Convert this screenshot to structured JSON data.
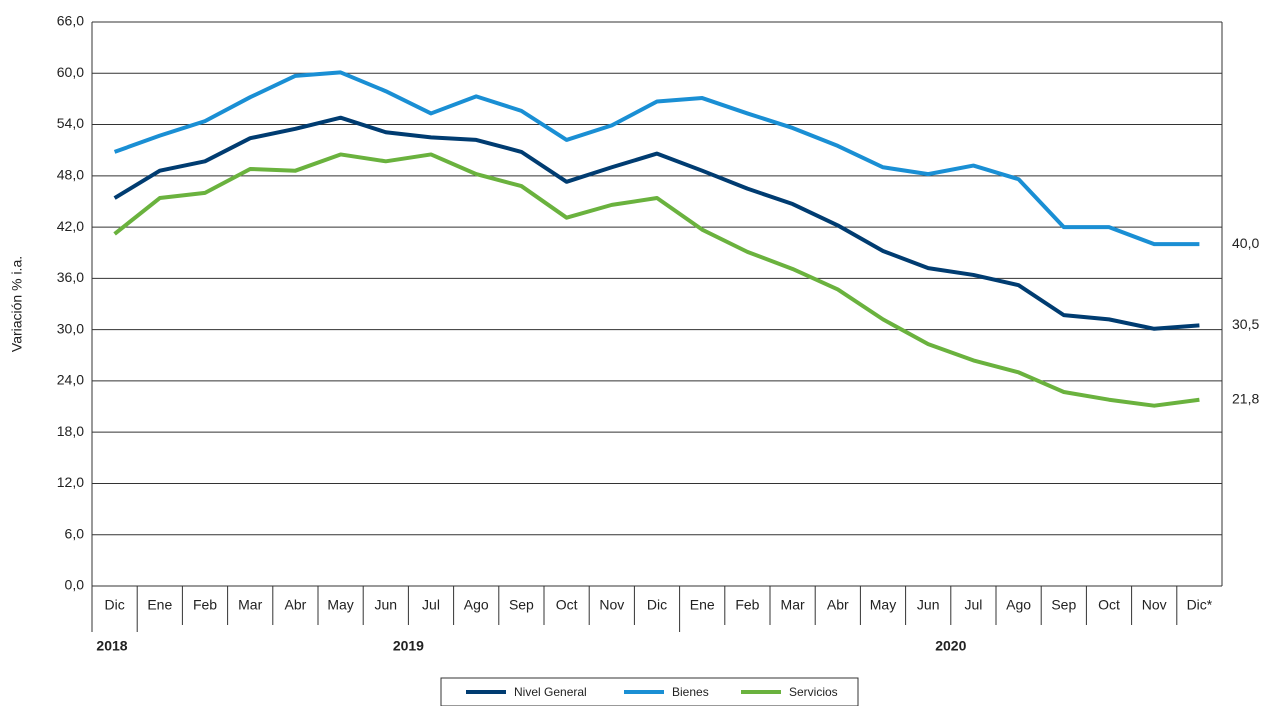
{
  "chart_data": {
    "type": "line",
    "y_label": "Variación % i.a.",
    "categories": [
      "Dic",
      "Ene",
      "Feb",
      "Mar",
      "Abr",
      "May",
      "Jun",
      "Jul",
      "Ago",
      "Sep",
      "Oct",
      "Nov",
      "Dic",
      "Ene",
      "Feb",
      "Mar",
      "Abr",
      "May",
      "Jun",
      "Jul",
      "Ago",
      "Sep",
      "Oct",
      "Nov",
      "Dic*"
    ],
    "years": [
      "2018",
      "2019",
      "2020"
    ],
    "ylim": [
      0,
      66
    ],
    "yticks": [
      {
        "value": 0,
        "label": "0,0"
      },
      {
        "value": 6,
        "label": "6,0"
      },
      {
        "value": 12,
        "label": "12,0"
      },
      {
        "value": 18,
        "label": "18,0"
      },
      {
        "value": 24,
        "label": "24,0"
      },
      {
        "value": 30,
        "label": "30,0"
      },
      {
        "value": 36,
        "label": "36,0"
      },
      {
        "value": 42,
        "label": "42,0"
      },
      {
        "value": 48,
        "label": "48,0"
      },
      {
        "value": 54,
        "label": "54,0"
      },
      {
        "value": 60,
        "label": "60,0"
      },
      {
        "value": 66,
        "label": "66,0"
      }
    ],
    "grid": true,
    "series": [
      {
        "name": "Nivel General",
        "color": "#003c71",
        "values": [
          45.4,
          48.6,
          49.7,
          52.4,
          53.5,
          54.8,
          53.1,
          52.5,
          52.2,
          50.8,
          47.3,
          49.0,
          50.6,
          48.6,
          46.5,
          44.7,
          42.2,
          39.2,
          37.2,
          36.4,
          35.2,
          31.7,
          31.2,
          30.1,
          30.5
        ],
        "value_labels": [
          null,
          null,
          null,
          null,
          null,
          null,
          null,
          null,
          null,
          null,
          null,
          null,
          null,
          null,
          null,
          null,
          null,
          null,
          null,
          null,
          null,
          null,
          null,
          null,
          "30,5"
        ]
      },
      {
        "name": "Bienes",
        "color": "#1a8fd4",
        "values": [
          50.8,
          52.7,
          54.4,
          57.2,
          59.7,
          60.1,
          57.9,
          55.3,
          57.3,
          55.6,
          52.2,
          53.9,
          56.7,
          57.1,
          55.3,
          53.6,
          51.5,
          49.0,
          48.2,
          49.2,
          47.6,
          42.0,
          42.0,
          40.0,
          40.0
        ],
        "value_labels": [
          null,
          null,
          null,
          null,
          null,
          null,
          null,
          null,
          null,
          null,
          null,
          null,
          null,
          null,
          null,
          null,
          null,
          null,
          null,
          null,
          null,
          null,
          null,
          null,
          "40,0"
        ]
      },
      {
        "name": "Servicios",
        "color": "#6ab23e",
        "values": [
          41.2,
          45.4,
          46.0,
          48.8,
          48.6,
          50.5,
          49.7,
          50.5,
          48.2,
          46.8,
          43.1,
          44.6,
          45.4,
          41.7,
          39.1,
          37.1,
          34.7,
          31.2,
          28.3,
          26.4,
          25.0,
          22.7,
          21.8,
          21.1,
          21.8
        ],
        "value_labels": [
          null,
          null,
          null,
          null,
          null,
          null,
          null,
          null,
          null,
          null,
          null,
          null,
          null,
          null,
          null,
          null,
          null,
          null,
          null,
          null,
          null,
          null,
          null,
          null,
          "21,8"
        ]
      }
    ]
  }
}
